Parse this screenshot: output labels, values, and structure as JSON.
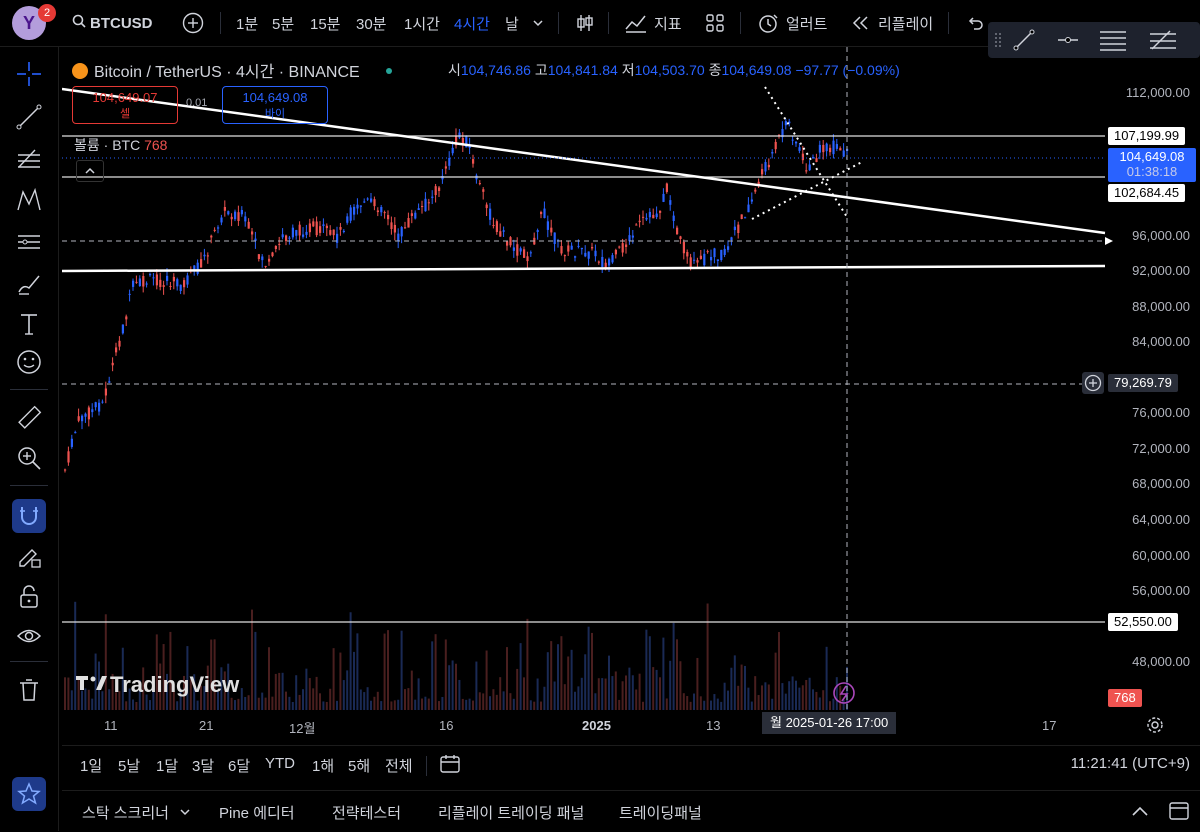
{
  "topbar": {
    "avatar_letter": "Y",
    "notif_count": "2",
    "symbol": "BTCUSD",
    "intervals": [
      "1분",
      "5분",
      "15분",
      "30분",
      "1시간",
      "4시간",
      "날"
    ],
    "active_interval": "4시간",
    "indicators_label": "지표",
    "alert_label": "얼러트",
    "replay_label": "리플레이"
  },
  "legend": {
    "title": "Bitcoin / TetherUS · 4시간 · BINANCE",
    "open_key": "시",
    "open": "104,746.86",
    "high_key": "고",
    "high": "104,841.84",
    "low_key": "저",
    "low": "104,503.70",
    "close_key": "종",
    "close": "104,649.08",
    "change": "−97.77 (−0.09%)"
  },
  "trade": {
    "sell_price": "104,649.07",
    "sell_label": "셀",
    "spread": "0.01",
    "buy_price": "104,649.08",
    "buy_label": "바이"
  },
  "volume": {
    "label": "볼륨 · BTC",
    "value": "768"
  },
  "price_axis": [
    "112,000.00",
    "96,000.00",
    "92,000.00",
    "88,000.00",
    "84,000.00",
    "76,000.00",
    "72,000.00",
    "68,000.00",
    "64,000.00",
    "60,000.00",
    "56,000.00",
    "48,000.00"
  ],
  "price_labels": {
    "level_top": "107,199.99",
    "current": "104,649.08",
    "countdown": "01:38:18",
    "level_mid": "102,684.45",
    "crosshair": "79,269.79",
    "level_low": "52,550.00",
    "volume_tag": "768"
  },
  "watermark": "TradingView",
  "time_axis": [
    "11",
    "21",
    "12월",
    "16",
    "2025",
    "13",
    "17"
  ],
  "crosshair_time": "월 2025-01-26  17:00",
  "ranges": [
    "1일",
    "5날",
    "1달",
    "3달",
    "6달",
    "YTD",
    "1해",
    "5해",
    "전체"
  ],
  "clock": "11:21:41 (UTC+9)",
  "bottom_tabs": [
    "스탁 스크리너",
    "Pine 에디터",
    "전략테스터",
    "리플레이 트레이딩 패널",
    "트레이딩패널"
  ],
  "colors": {
    "accent": "#2962ff",
    "down": "#ef5350",
    "up": "#2962ff",
    "bg": "#000000"
  }
}
